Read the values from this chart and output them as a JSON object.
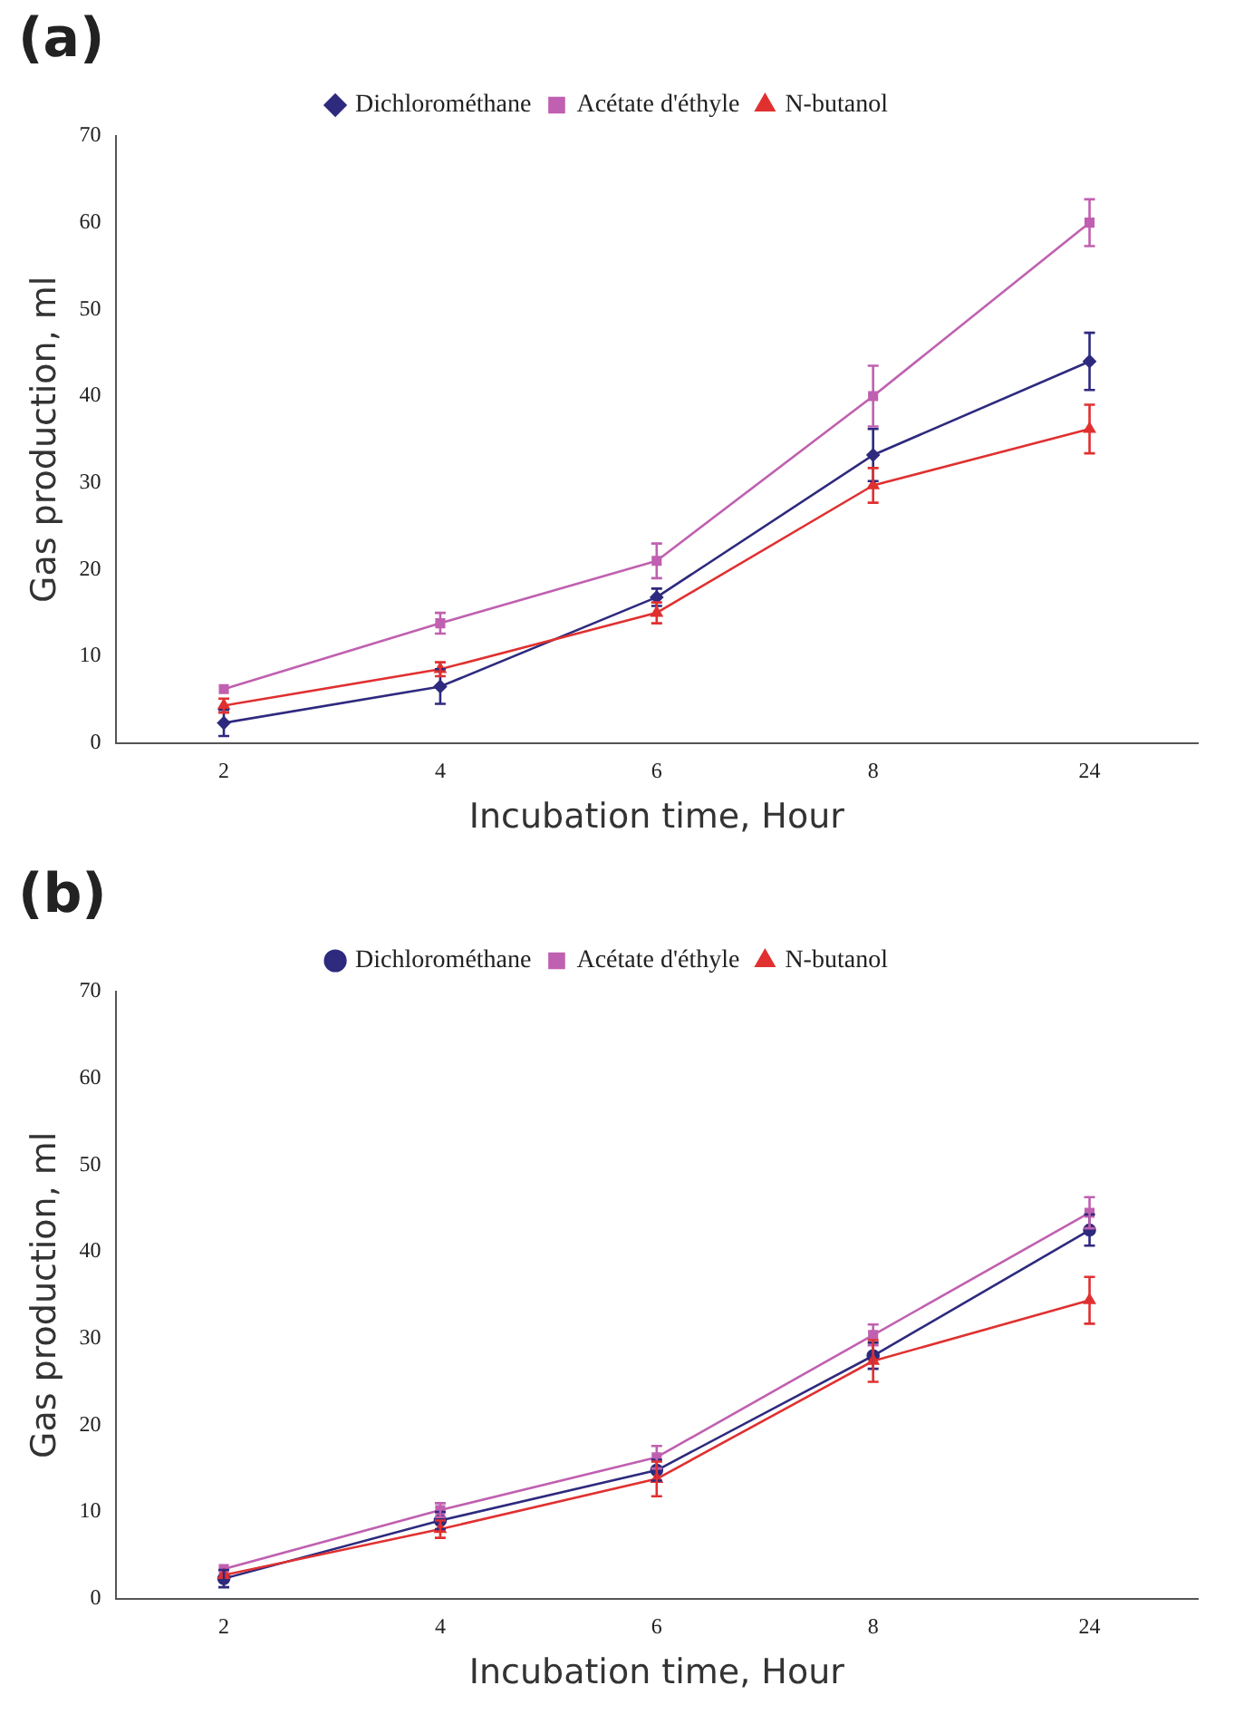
{
  "chart_data": [
    {
      "type": "line",
      "title": "(a)",
      "categories": [
        "2",
        "4",
        "6",
        "8",
        "24"
      ],
      "xlabel": "Incubation time, Hour",
      "ylabel": "Gas production, ml",
      "ylim": [
        0,
        70
      ],
      "yticks": [
        0,
        10,
        20,
        30,
        40,
        50,
        60,
        70
      ],
      "grid": false,
      "legend": "top",
      "line_style": "solid",
      "series": [
        {
          "name": "Dichlorométhane",
          "color": "#2e2a7e",
          "marker": "diamond",
          "values": [
            2.3,
            6.5,
            16.8,
            33.2,
            44
          ],
          "errors": [
            1.5,
            2,
            1,
            3,
            3.3
          ]
        },
        {
          "name": "Acétate d'éthyle",
          "color": "#c060b0",
          "marker": "square",
          "values": [
            6.2,
            13.8,
            21,
            40,
            60
          ],
          "errors": [
            null,
            1.2,
            2,
            3.5,
            2.7
          ]
        },
        {
          "name": "N-butanol",
          "color": "#e03030",
          "marker": "triangle",
          "values": [
            4.3,
            8.5,
            15,
            29.7,
            36.2
          ],
          "errors": [
            0.8,
            0.8,
            1.2,
            2,
            2.8
          ]
        }
      ]
    },
    {
      "type": "line",
      "title": "(b)",
      "categories": [
        "2",
        "4",
        "6",
        "8",
        "24"
      ],
      "xlabel": "Incubation time, Hour",
      "ylabel": "Gas production, ml",
      "ylim": [
        0,
        70
      ],
      "yticks": [
        0,
        10,
        20,
        30,
        40,
        50,
        60,
        70
      ],
      "grid": false,
      "legend": "top",
      "line_style": "solid",
      "series": [
        {
          "name": "Dichlorométhane",
          "color": "#2e2a7e",
          "marker": "circle",
          "values": [
            2.3,
            9,
            14.8,
            28,
            42.5
          ],
          "errors": [
            1,
            1,
            1.2,
            1.5,
            1.8
          ]
        },
        {
          "name": "Acétate d'éthyle",
          "color": "#c060b0",
          "marker": "square",
          "values": [
            3.4,
            10.2,
            16.3,
            30.4,
            44.5
          ],
          "errors": [
            null,
            0.8,
            1.3,
            1.2,
            1.8
          ]
        },
        {
          "name": "N-butanol",
          "color": "#e03030",
          "marker": "triangle",
          "values": [
            2.7,
            8,
            13.8,
            27.4,
            34.4
          ],
          "errors": [
            null,
            1,
            2,
            2.4,
            2.7
          ]
        }
      ]
    }
  ]
}
